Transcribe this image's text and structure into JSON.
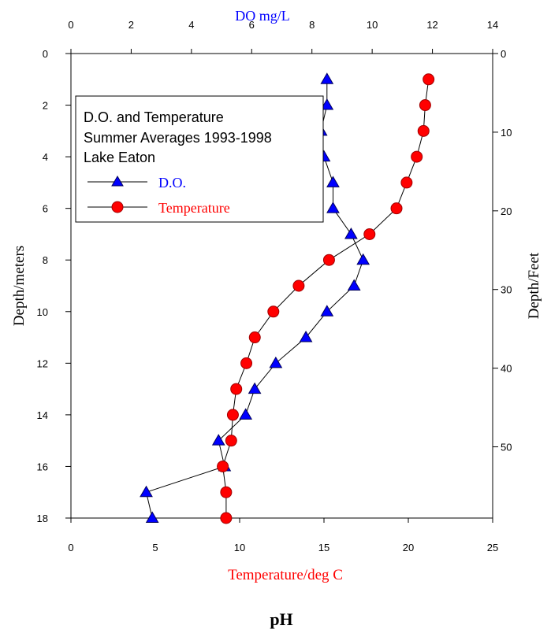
{
  "chart_data": {
    "type": "line",
    "orientation": "depth-profile",
    "legend_title_lines": [
      "D.O. and Temperature",
      "Summer Averages 1993-1998",
      "Lake Eaton"
    ],
    "left_axis_label": "Depth/meters",
    "right_axis_label": "Depth/Feet",
    "top_axis_label": "DO mg/L",
    "bottom_axis_label": "Temperature/deg C",
    "footer_label": "pH",
    "depth_range_m": [
      0,
      18
    ],
    "depth_ticks_m": [
      "0",
      "2",
      "4",
      "6",
      "8",
      "10",
      "12",
      "14",
      "16",
      "18"
    ],
    "feet_ticks": [
      "0",
      "10",
      "20",
      "30",
      "40",
      "50"
    ],
    "do_range": [
      0,
      14
    ],
    "do_ticks": [
      "0",
      "2",
      "4",
      "6",
      "8",
      "10",
      "12",
      "14"
    ],
    "temp_range": [
      0,
      25
    ],
    "temp_ticks": [
      "0",
      "5",
      "10",
      "15",
      "20",
      "25"
    ],
    "legend_position": "upper-left",
    "series": [
      {
        "name": "D.O.",
        "axis": "top",
        "color": "#0000ff",
        "marker": "triangle",
        "depth": [
          1,
          2,
          3,
          4,
          5,
          6,
          7,
          8,
          9,
          10,
          11,
          12,
          13,
          14,
          15,
          16,
          17,
          18
        ],
        "value": [
          8.5,
          8.5,
          8.3,
          8.4,
          8.7,
          8.7,
          9.3,
          9.7,
          9.4,
          8.5,
          7.8,
          6.8,
          6.1,
          5.8,
          4.9,
          5.1,
          2.5,
          2.7
        ]
      },
      {
        "name": "Temperature",
        "axis": "bottom",
        "color": "#ff0000",
        "marker": "circle",
        "depth": [
          1,
          2,
          3,
          4,
          5,
          6,
          7,
          8,
          9,
          10,
          11,
          12,
          13,
          14,
          15,
          16,
          17,
          18
        ],
        "value": [
          21.2,
          21.0,
          20.9,
          20.5,
          19.9,
          19.3,
          17.7,
          15.3,
          13.5,
          12.0,
          10.9,
          10.4,
          9.8,
          9.6,
          9.5,
          9.0,
          9.2,
          9.2
        ]
      }
    ]
  }
}
